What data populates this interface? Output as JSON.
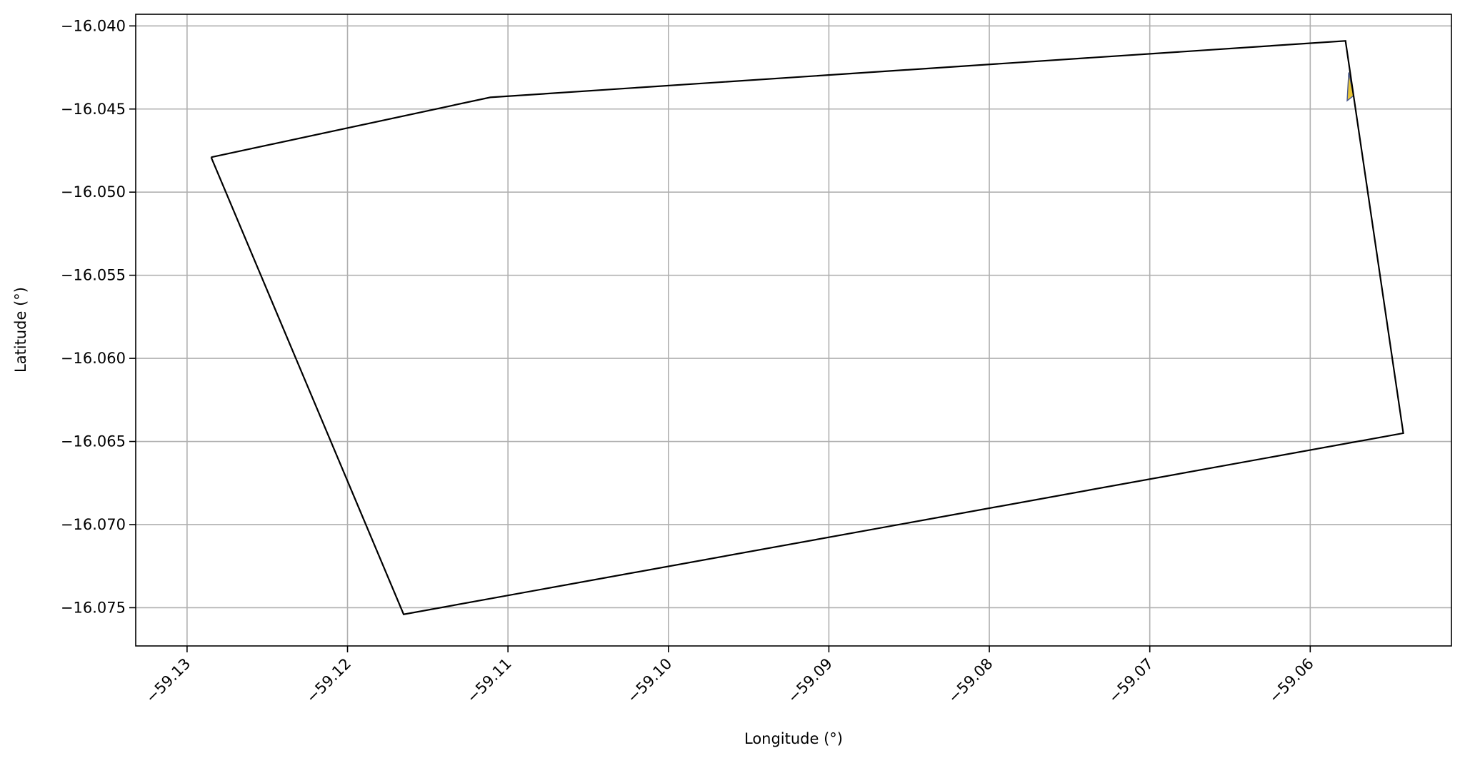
{
  "chart_data": {
    "type": "map",
    "xlabel": "Longitude (°)",
    "ylabel": "Latitude (°)",
    "xlim": [
      -59.1332,
      -59.0512
    ],
    "ylim": [
      -16.0773,
      -16.0393
    ],
    "x_ticks": [
      -59.13,
      -59.12,
      -59.11,
      -59.1,
      -59.09,
      -59.08,
      -59.07,
      -59.06
    ],
    "x_tick_labels": [
      "−59.13",
      "−59.12",
      "−59.11",
      "−59.10",
      "−59.09",
      "−59.08",
      "−59.07",
      "−59.06"
    ],
    "y_ticks": [
      -16.04,
      -16.045,
      -16.05,
      -16.055,
      -16.06,
      -16.065,
      -16.07,
      -16.075
    ],
    "y_tick_labels": [
      "−16.040",
      "−16.045",
      "−16.050",
      "−16.055",
      "−16.060",
      "−16.065",
      "−16.070",
      "−16.075"
    ],
    "grid": true,
    "boundary_polygon": {
      "stroke_color": "#000000",
      "fill": "none",
      "coordinates": [
        [
          -59.1285,
          -16.0479
        ],
        [
          -59.1111,
          -16.0443
        ],
        [
          -59.0578,
          -16.0409
        ],
        [
          -59.0542,
          -16.0645
        ],
        [
          -59.1165,
          -16.0754
        ],
        [
          -59.1285,
          -16.0479
        ]
      ]
    },
    "highlighted_polygon": {
      "fill_color": "#e8c537",
      "stroke_color": "#4a5a8c",
      "coordinates": [
        [
          -59.0576,
          -16.0428
        ],
        [
          -59.0573,
          -16.0442
        ],
        [
          -59.0577,
          -16.0445
        ],
        [
          -59.0576,
          -16.0428
        ]
      ]
    }
  }
}
